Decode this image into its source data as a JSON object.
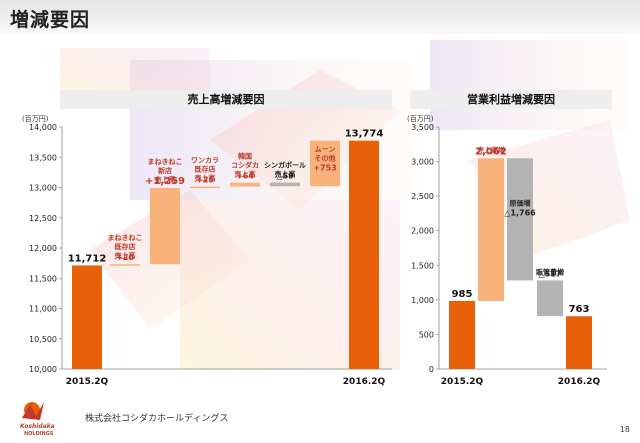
{
  "page": {
    "title": "増減要因",
    "company": "株式会社コシダカホールディングス",
    "page_number": "18",
    "logo_text": "Koshidaka HOLDINGS"
  },
  "colors": {
    "orange": "#e8610a",
    "light_orange": "#f9b27a",
    "gray": "#b3b3b3",
    "label_red": "#c0392b"
  },
  "chart_data": [
    {
      "type": "bar",
      "title": "売上高増減要因",
      "unit_label": "(百万円)",
      "ylim": [
        10000,
        14000
      ],
      "yticks": [
        "10,000",
        "10,500",
        "11,000",
        "11,500",
        "12,000",
        "12,500",
        "13,000",
        "13,500",
        "14,000"
      ],
      "categories": [
        "2015.2Q",
        "2016.2Q"
      ],
      "start_value": 11712,
      "start_label": "11,712",
      "end_value": 13774,
      "end_label": "13,774",
      "steps": [
        {
          "label_lines": [
            "まねきねこ",
            "既存店",
            "売上高"
          ],
          "delta_label": "+20",
          "value": 20,
          "kind": "increase"
        },
        {
          "label_lines": [
            "まねきねこ",
            "新店",
            "売上高"
          ],
          "delta_label": "+1,259",
          "value": 1259,
          "kind": "increase"
        },
        {
          "label_lines": [
            "ワンカラ",
            "既存店",
            "売上高"
          ],
          "delta_label": "+25",
          "value": 25,
          "kind": "increase"
        },
        {
          "label_lines": [
            "韓国",
            "コシダカ",
            "売上高"
          ],
          "delta_label": "+64",
          "value": 64,
          "kind": "increase"
        },
        {
          "label_lines": [
            "シンガポール",
            "売上高"
          ],
          "delta_label": "△59",
          "value": -59,
          "kind": "decrease"
        },
        {
          "label_lines": [
            "ムーン",
            "その他"
          ],
          "delta_label": "+753",
          "value": 753,
          "kind": "increase"
        }
      ]
    },
    {
      "type": "bar",
      "title": "営業利益増減要因",
      "unit_label": "(百万円)",
      "ylim": [
        0,
        3500
      ],
      "yticks": [
        "0",
        "500",
        "1,000",
        "1,500",
        "2,000",
        "2,500",
        "3,000",
        "3,500"
      ],
      "categories": [
        "2015.2Q",
        "2016.2Q"
      ],
      "start_value": 985,
      "start_label": "985",
      "end_value": 763,
      "end_label": "763",
      "steps": [
        {
          "label_lines": [
            "売上高増"
          ],
          "delta_label": "2,062",
          "value": 2062,
          "kind": "increase"
        },
        {
          "label_lines": [
            "原価増"
          ],
          "delta_label": "△1,766",
          "value": -1766,
          "kind": "decrease"
        },
        {
          "label_lines": [
            "販管費増"
          ],
          "delta_label": "△517",
          "value": -517,
          "kind": "decrease"
        }
      ]
    }
  ]
}
